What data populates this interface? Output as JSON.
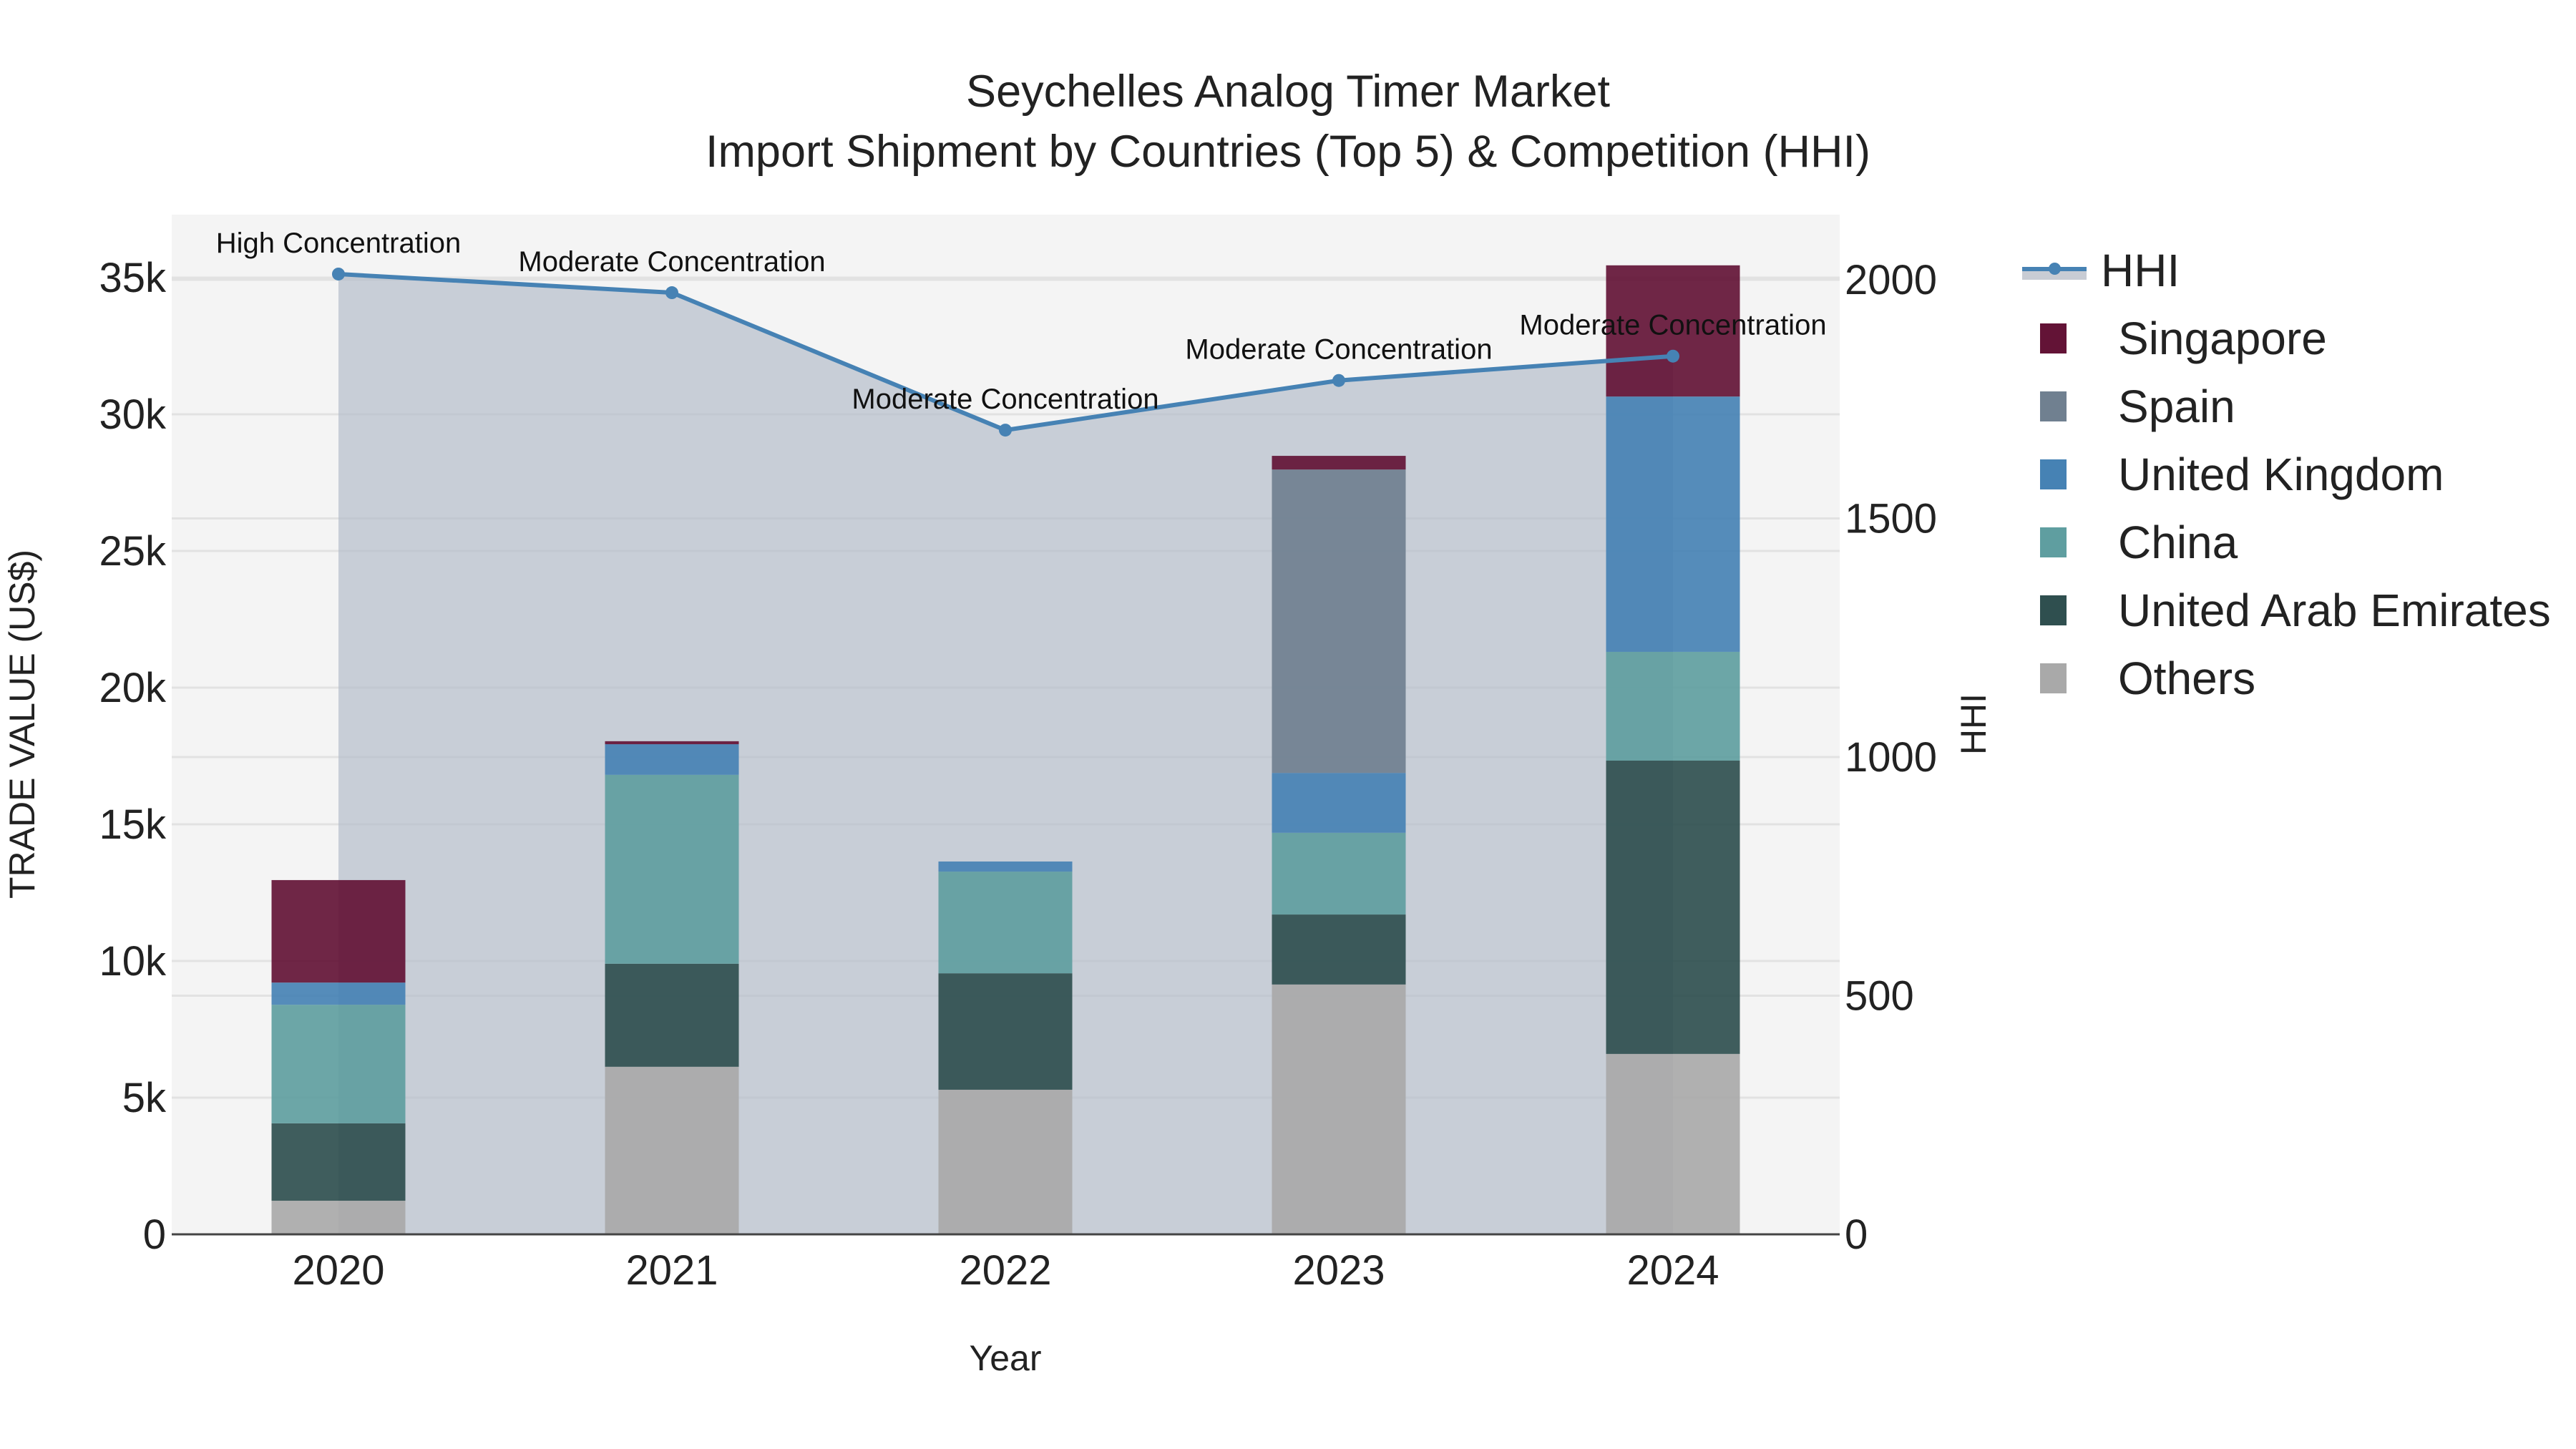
{
  "title": {
    "line1": "Seychelles Analog Timer Market",
    "line2": "Import Shipment by Countries (Top 5) & Competition (HHI)"
  },
  "axes": {
    "x_title": "Year",
    "y_left_title": "TRADE VALUE (US$)",
    "y_right_title": "HHI",
    "y_left_ticks": [
      "0",
      "5k",
      "10k",
      "15k",
      "20k",
      "25k",
      "30k",
      "35k"
    ],
    "y_right_ticks": [
      "0",
      "500",
      "1000",
      "1500",
      "2000"
    ]
  },
  "legend": {
    "items": [
      {
        "label": "HHI",
        "kind": "line",
        "color": "#4682b4"
      },
      {
        "label": "Singapore",
        "kind": "box",
        "color": "#631336"
      },
      {
        "label": "Spain",
        "kind": "box",
        "color": "#708090"
      },
      {
        "label": "United Kingdom",
        "kind": "box",
        "color": "#4682b4"
      },
      {
        "label": "China",
        "kind": "box",
        "color": "#5f9ea0"
      },
      {
        "label": "United Arab Emirates",
        "kind": "box",
        "color": "#2f4f4f"
      },
      {
        "label": "Others",
        "kind": "box",
        "color": "#a9a9a9"
      }
    ]
  },
  "chart_data": {
    "type": "bar",
    "stacked": true,
    "title": "Seychelles Analog Timer Market\nImport Shipment by Countries (Top 5) & Competition (HHI)",
    "xlabel": "Year",
    "ylabel": "TRADE VALUE (US$)",
    "y2label": "HHI",
    "ylim": [
      0,
      37200
    ],
    "y2lim": [
      0,
      2125
    ],
    "grid": true,
    "legend_position": "right",
    "categories": [
      "2020",
      "2021",
      "2022",
      "2023",
      "2024"
    ],
    "series": [
      {
        "name": "Others",
        "color": "#a9a9a9",
        "values": [
          1230,
          6130,
          5290,
          9140,
          6600
        ]
      },
      {
        "name": "United Arab Emirates",
        "color": "#2f4f4f",
        "values": [
          2830,
          3770,
          4260,
          2560,
          10730
        ]
      },
      {
        "name": "China",
        "color": "#5f9ea0",
        "values": [
          4340,
          6910,
          3720,
          2990,
          3980
        ]
      },
      {
        "name": "United Kingdom",
        "color": "#4682b4",
        "values": [
          810,
          1120,
          370,
          2190,
          9340
        ]
      },
      {
        "name": "Spain",
        "color": "#708090",
        "values": [
          0,
          0,
          0,
          11100,
          0
        ]
      },
      {
        "name": "Singapore",
        "color": "#631336",
        "values": [
          3750,
          110,
          0,
          500,
          4800
        ]
      }
    ],
    "totals": [
      12960,
      18040,
      13640,
      28480,
      35450
    ],
    "line_series": {
      "name": "HHI",
      "axis": "right",
      "color": "#4682b4",
      "fill": "tozeroy",
      "values": [
        2012,
        1973,
        1685,
        1789,
        1840
      ],
      "annotations": [
        "High Concentration",
        "Moderate Concentration",
        "Moderate Concentration",
        "Moderate Concentration",
        "Moderate Concentration"
      ]
    }
  }
}
